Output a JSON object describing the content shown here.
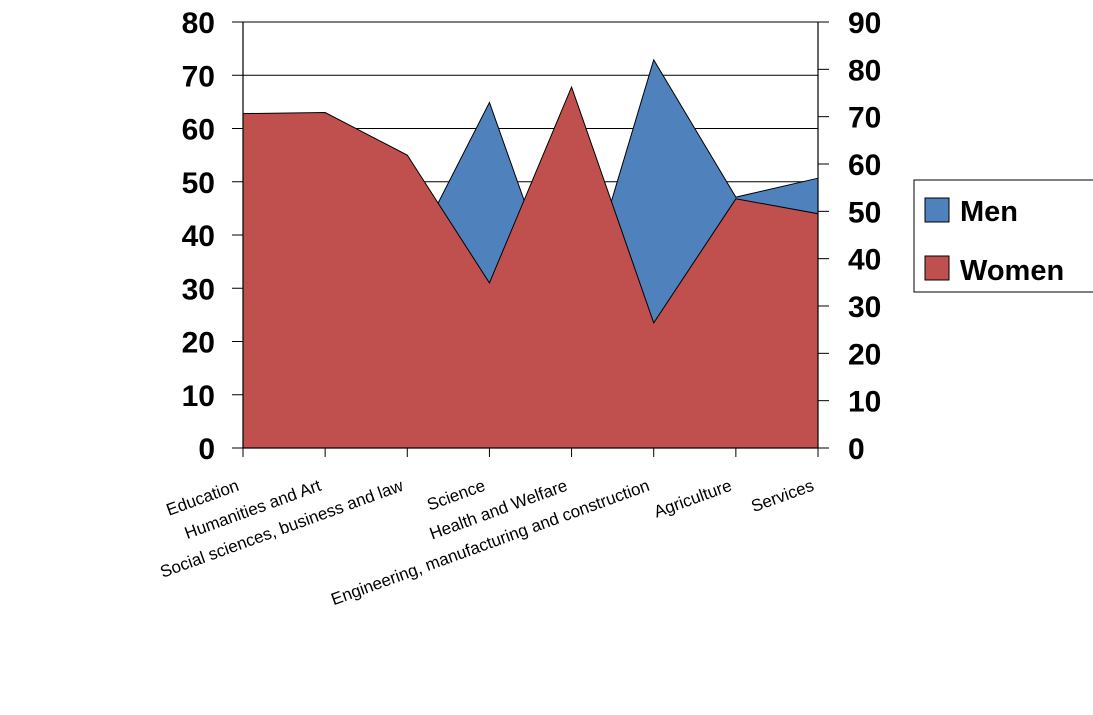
{
  "chart_data": {
    "type": "area",
    "categories": [
      "Education",
      "Humanities and Art",
      "Social sciences, business and law",
      "Science",
      "Health and Welfare",
      "Engineering, manufacturing and construction",
      "Agriculture",
      "Services"
    ],
    "series": [
      {
        "name": "Men",
        "axis": "right",
        "color": "#4F81BD",
        "values": [
          26,
          28,
          39,
          73,
          24,
          82,
          53,
          57
        ]
      },
      {
        "name": "Women",
        "axis": "left",
        "color": "#C0504D",
        "values": [
          62.8,
          63.0,
          55.0,
          31.0,
          67.8,
          23.5,
          46.8,
          44.0
        ]
      }
    ],
    "y_left": {
      "min": 0,
      "max": 80,
      "ticks": [
        "0",
        "10",
        "20",
        "30",
        "40",
        "50",
        "60",
        "70",
        "80"
      ]
    },
    "y_right": {
      "min": 0,
      "max": 90,
      "ticks": [
        "0",
        "10",
        "20",
        "30",
        "40",
        "50",
        "60",
        "70",
        "80",
        "90"
      ]
    },
    "gridlines": "horizontal",
    "legend": {
      "position": "right",
      "entries": [
        "Men",
        "Women"
      ]
    }
  }
}
